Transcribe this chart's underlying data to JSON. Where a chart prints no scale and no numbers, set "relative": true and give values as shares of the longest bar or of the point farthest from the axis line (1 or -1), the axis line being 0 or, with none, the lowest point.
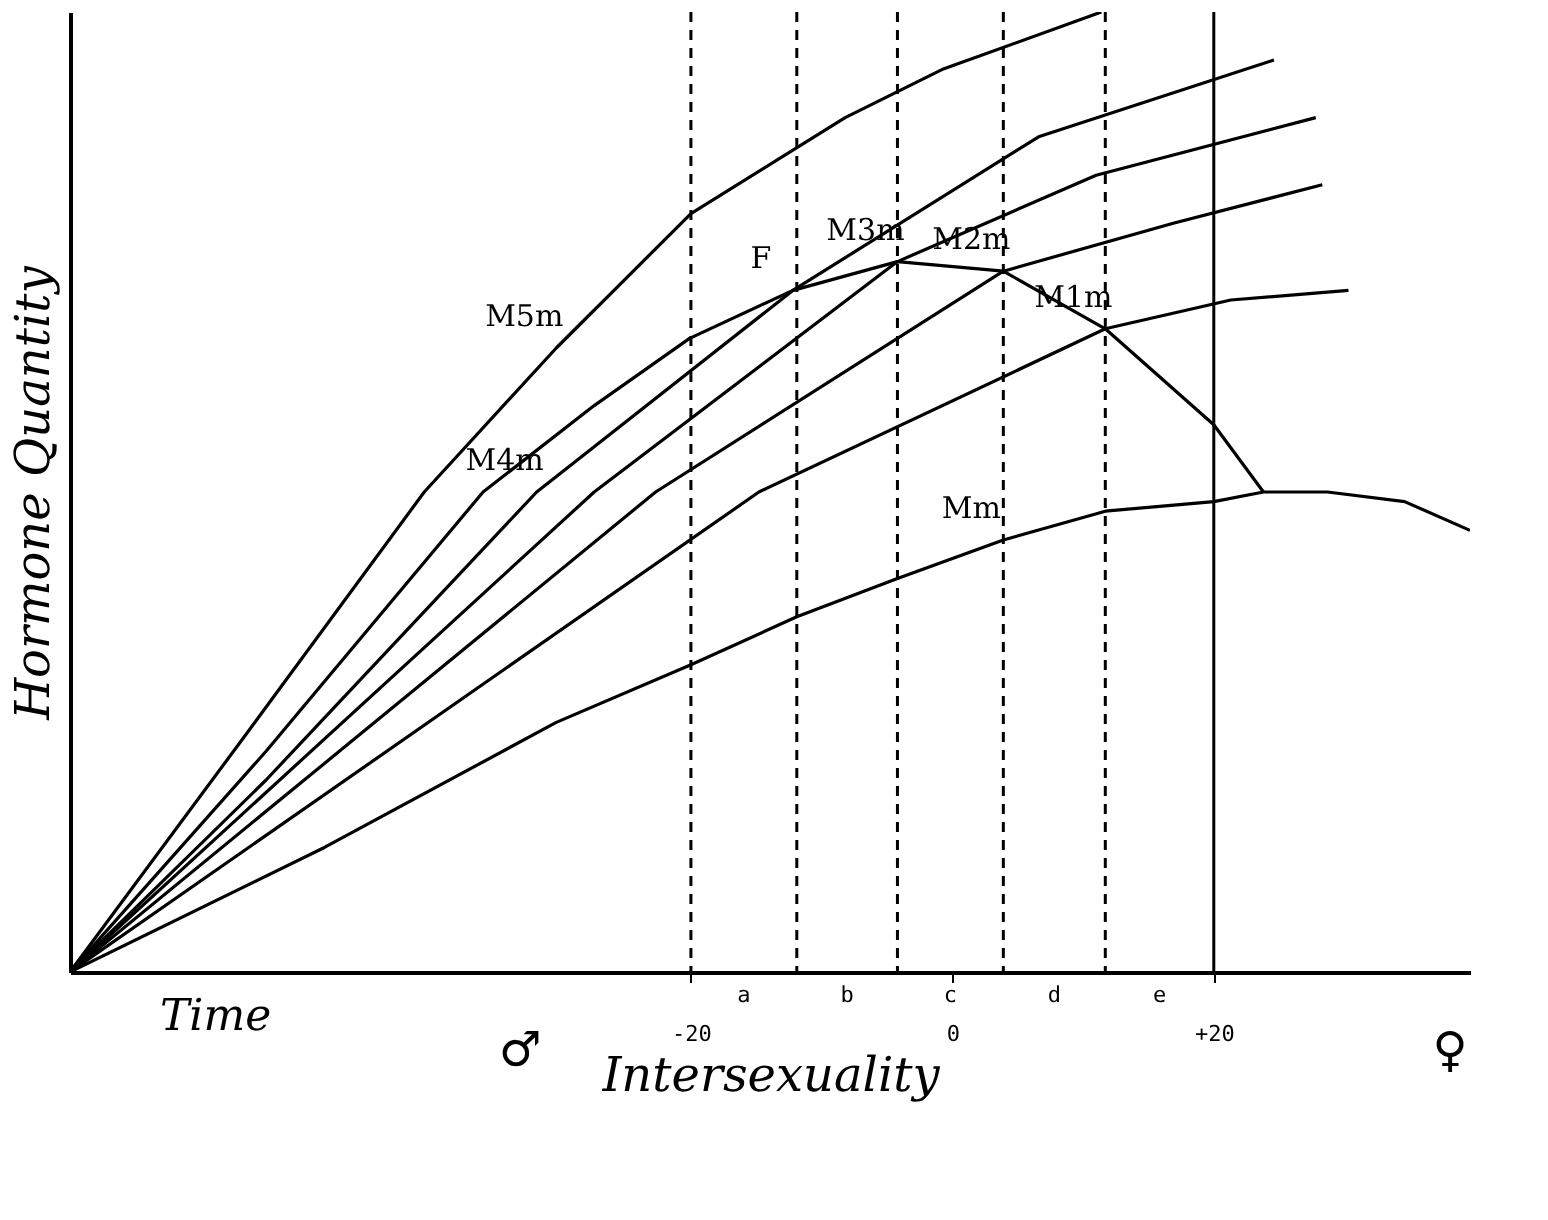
{
  "chart_data": {
    "type": "line",
    "relative": true,
    "xlabel": "Intersexuality",
    "ylabel": "Hormone Quantity",
    "xlim": [
      -67.5,
      39.6
    ],
    "xticks": [
      {
        "value": -20,
        "label": "-20"
      },
      0,
      {
        "value": 20,
        "label": "+20"
      }
    ],
    "tick_labels": "x",
    "grid": false,
    "line_style": "solid",
    "series": [
      {
        "name": "M5m",
        "color": "#000000",
        "x": [
          -67.5,
          -53.9,
          -40.4,
          -30.3,
          -20.0,
          -8.2,
          -0.8,
          11.4
        ],
        "values": [
          0,
          0.25,
          0.5,
          0.65,
          0.79,
          0.89,
          0.94,
          1.0
        ]
      },
      {
        "name": "F",
        "color": "#000000",
        "x": [
          -67.5,
          -52.5,
          -35.9,
          -27.4,
          -20.1,
          -12.2,
          -4.2,
          3.9,
          11.7,
          20.0,
          23.8
        ],
        "values": [
          0,
          0.23,
          0.5,
          0.59,
          0.66,
          0.71,
          0.74,
          0.73,
          0.67,
          0.57,
          0.5
        ]
      },
      {
        "name": "M4m",
        "color": "#000000",
        "x": [
          -67.5,
          -52.5,
          -31.8,
          -12.2,
          6.6,
          24.6
        ],
        "values": [
          0,
          0.2,
          0.5,
          0.71,
          0.87,
          0.95
        ]
      },
      {
        "name": "M3m",
        "color": "#000000",
        "x": [
          -67.5,
          -27.4,
          -4.2,
          11.0,
          27.8
        ],
        "values": [
          0,
          0.5,
          0.74,
          0.83,
          0.89
        ]
      },
      {
        "name": "M2m",
        "color": "#000000",
        "x": [
          -67.5,
          -22.7,
          3.9,
          16.9,
          28.3
        ],
        "values": [
          0,
          0.5,
          0.73,
          0.78,
          0.82
        ]
      },
      {
        "name": "M1m",
        "color": "#000000",
        "x": [
          -67.5,
          -14.8,
          11.7,
          21.3,
          30.3
        ],
        "values": [
          0,
          0.5,
          0.67,
          0.7,
          0.71
        ]
      },
      {
        "name": "Mm",
        "color": "#000000",
        "x": [
          -67.5,
          -48.0,
          -30.3,
          -20.0,
          -11.9,
          -4.2,
          3.9,
          11.7,
          20.0,
          23.8,
          28.7,
          34.6,
          39.6
        ],
        "values": [
          0,
          0.13,
          0.26,
          0.32,
          0.37,
          0.41,
          0.45,
          0.48,
          0.49,
          0.5,
          0.5,
          0.49,
          0.46
        ]
      }
    ],
    "ref_lines": [
      {
        "axis": "x",
        "value": -20,
        "line_style": "dashed"
      },
      {
        "axis": "x",
        "value": -11.9,
        "line_style": "dashed"
      },
      {
        "axis": "x",
        "value": -4.2,
        "line_style": "dashed"
      },
      {
        "axis": "x",
        "value": 3.9,
        "line_style": "dashed"
      },
      {
        "axis": "x",
        "value": 11.7,
        "line_style": "dashed"
      },
      {
        "axis": "x",
        "value": 20,
        "line_style": "solid"
      }
    ],
    "annotations": [
      "a",
      "b",
      "c",
      "d",
      "e",
      "Time",
      "♂",
      "♀"
    ]
  }
}
